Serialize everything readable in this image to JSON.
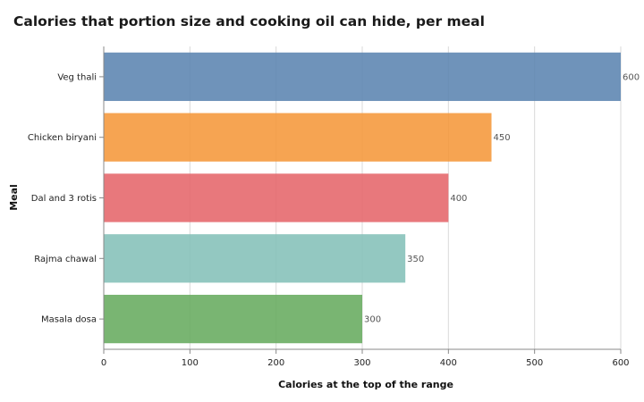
{
  "chart_data": {
    "type": "bar",
    "orientation": "horizontal",
    "title": "Calories that portion size and cooking oil can hide, per meal",
    "xlabel": "Calories at the top of the range",
    "ylabel": "Meal",
    "categories": [
      "Veg thali",
      "Chicken biryani",
      "Dal and 3 rotis",
      "Rajma chawal",
      "Masala dosa"
    ],
    "values": [
      600,
      450,
      400,
      350,
      300
    ],
    "colors": [
      "#5b84b1",
      "#f5973a",
      "#e5656a",
      "#84c0b8",
      "#67ab5e"
    ],
    "xlim": [
      0,
      600
    ],
    "xticks": [
      0,
      100,
      200,
      300,
      400,
      500,
      600
    ],
    "grid": true,
    "data_labels": true,
    "legend": "none"
  }
}
